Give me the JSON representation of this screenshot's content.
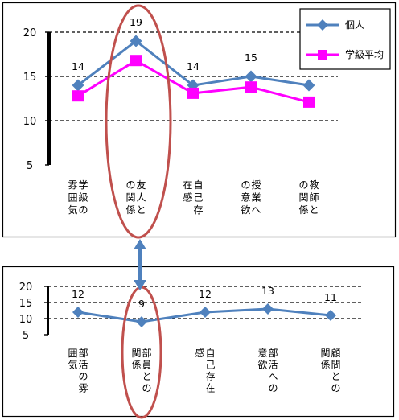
{
  "chart_data": [
    {
      "type": "line",
      "categories": [
        "学級の雰囲気",
        "友人との関係",
        "自己存在感",
        "授業への意欲",
        "教師との関係"
      ],
      "category_columns": [
        [
          "学",
          "級",
          "の",
          "雰",
          "囲",
          "気"
        ],
        [
          "友",
          "人",
          "と",
          "の",
          "関",
          "係"
        ],
        [
          "自",
          "己",
          "存",
          "在",
          "感"
        ],
        [
          "授",
          "業",
          "へ",
          "の",
          "意",
          "欲"
        ],
        [
          "教",
          "師",
          "と",
          "の",
          "関",
          "係"
        ]
      ],
      "series": [
        {
          "name": "個人",
          "values": [
            14,
            19,
            14,
            15,
            14
          ],
          "color": "#4f81bd",
          "marker": "diamond",
          "labels": [
            "14",
            "19",
            "14",
            "15",
            ""
          ]
        },
        {
          "name": "学級平均",
          "values": [
            12.8,
            16.8,
            13.1,
            13.8,
            12.1
          ],
          "color": "#ff00ff",
          "marker": "square"
        }
      ],
      "y_ticks": [
        "20",
        "15",
        "10",
        "5"
      ],
      "ylim": [
        5,
        20
      ],
      "grid": "dashed",
      "legend_position": "top-right",
      "highlight": "友人との関係"
    },
    {
      "type": "line",
      "categories": [
        "部活の雰囲気",
        "部員との関係",
        "自己存在感",
        "部活への意欲",
        "顧問との関係"
      ],
      "category_columns": [
        [
          "部",
          "活",
          "の",
          "雰",
          "囲",
          "気"
        ],
        [
          "部",
          "員",
          "と",
          "の",
          "関",
          "係"
        ],
        [
          "自",
          "己",
          "存",
          "在",
          "感"
        ],
        [
          "部",
          "活",
          "へ",
          "の",
          "意",
          "欲"
        ],
        [
          "顧",
          "問",
          "と",
          "の",
          "関",
          "係"
        ]
      ],
      "series": [
        {
          "name": "個人",
          "values": [
            12,
            9,
            12,
            13,
            11
          ],
          "color": "#4f81bd",
          "marker": "diamond",
          "labels": [
            "12",
            "9",
            "12",
            "13",
            "11"
          ]
        }
      ],
      "y_ticks": [
        "20",
        "15",
        "10",
        "5"
      ],
      "ylim": [
        5,
        20
      ],
      "grid": "dashed",
      "highlight": "部員との関係"
    }
  ]
}
